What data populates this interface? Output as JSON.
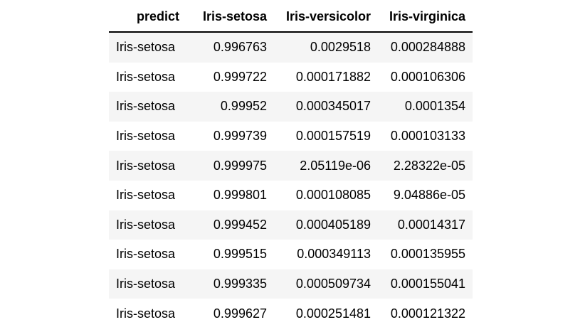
{
  "table": {
    "columns": [
      "predict",
      "Iris-setosa",
      "Iris-versicolor",
      "Iris-virginica"
    ],
    "rows": [
      [
        "Iris-setosa",
        "0.996763",
        "0.0029518",
        "0.000284888"
      ],
      [
        "Iris-setosa",
        "0.999722",
        "0.000171882",
        "0.000106306"
      ],
      [
        "Iris-setosa",
        "0.99952",
        "0.000345017",
        "0.0001354"
      ],
      [
        "Iris-setosa",
        "0.999739",
        "0.000157519",
        "0.000103133"
      ],
      [
        "Iris-setosa",
        "0.999975",
        "2.05119e-06",
        "2.28322e-05"
      ],
      [
        "Iris-setosa",
        "0.999801",
        "0.000108085",
        "9.04886e-05"
      ],
      [
        "Iris-setosa",
        "0.999452",
        "0.000405189",
        "0.00014317"
      ],
      [
        "Iris-setosa",
        "0.999515",
        "0.000349113",
        "0.000135955"
      ],
      [
        "Iris-setosa",
        "0.999335",
        "0.000509734",
        "0.000155041"
      ],
      [
        "Iris-setosa",
        "0.999627",
        "0.000251481",
        "0.000121322"
      ]
    ]
  },
  "colors": {
    "stripe": "#f5f5f5",
    "header_rule": "#000000",
    "text": "#000000"
  }
}
